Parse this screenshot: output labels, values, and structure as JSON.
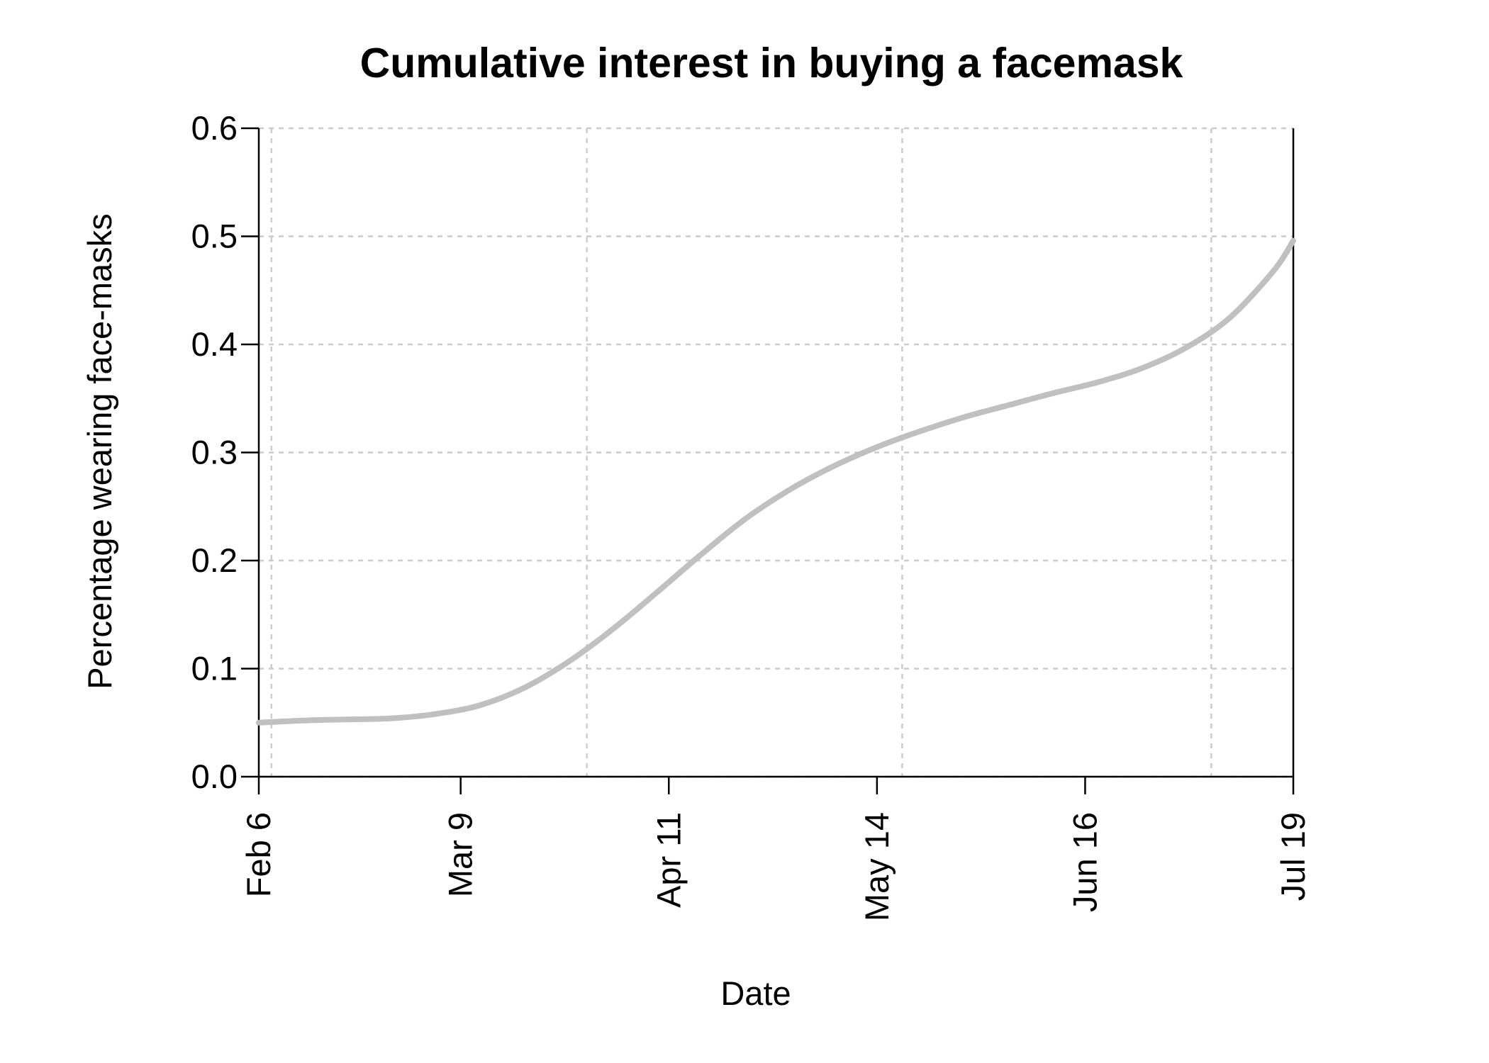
{
  "chart_data": {
    "type": "line",
    "title": "Cumulative interest in buying a facemask",
    "xlabel": "Date",
    "ylabel": "Percentage  wearing face-masks",
    "x_ticks": [
      "Feb 6",
      "Mar 9",
      "Apr 11",
      "May 14",
      "Jun 16",
      "Jul 19"
    ],
    "x_tick_dates": [
      "2020-02-06",
      "2020-03-09",
      "2020-04-11",
      "2020-05-14",
      "2020-06-16",
      "2020-07-19"
    ],
    "xlim": [
      "2020-02-06",
      "2020-07-19"
    ],
    "y_ticks": [
      "0.0",
      "0.1",
      "0.2",
      "0.3",
      "0.4",
      "0.5",
      "0.6"
    ],
    "ylim": [
      0,
      0.6
    ],
    "grid": true,
    "x_grid_dates": [
      "2020-02-08",
      "2020-03-29",
      "2020-05-18",
      "2020-07-06"
    ],
    "colors": {
      "series": "#c0c0c0",
      "grid": "#cccccc",
      "axis": "#000000"
    },
    "series": [
      {
        "x": [
          "2020-02-06",
          "2020-02-13",
          "2020-02-20",
          "2020-02-27",
          "2020-03-05",
          "2020-03-12",
          "2020-03-19",
          "2020-03-26",
          "2020-04-02",
          "2020-04-09",
          "2020-04-16",
          "2020-04-23",
          "2020-04-30",
          "2020-05-07",
          "2020-05-14",
          "2020-05-21",
          "2020-05-28",
          "2020-06-04",
          "2020-06-11",
          "2020-06-18",
          "2020-06-25",
          "2020-07-02",
          "2020-07-09",
          "2020-07-16",
          "2020-07-19"
        ],
        "y": [
          0.05,
          0.052,
          0.053,
          0.054,
          0.058,
          0.066,
          0.082,
          0.106,
          0.136,
          0.17,
          0.205,
          0.238,
          0.265,
          0.287,
          0.305,
          0.32,
          0.333,
          0.344,
          0.355,
          0.365,
          0.378,
          0.397,
          0.425,
          0.469,
          0.496
        ]
      }
    ]
  }
}
